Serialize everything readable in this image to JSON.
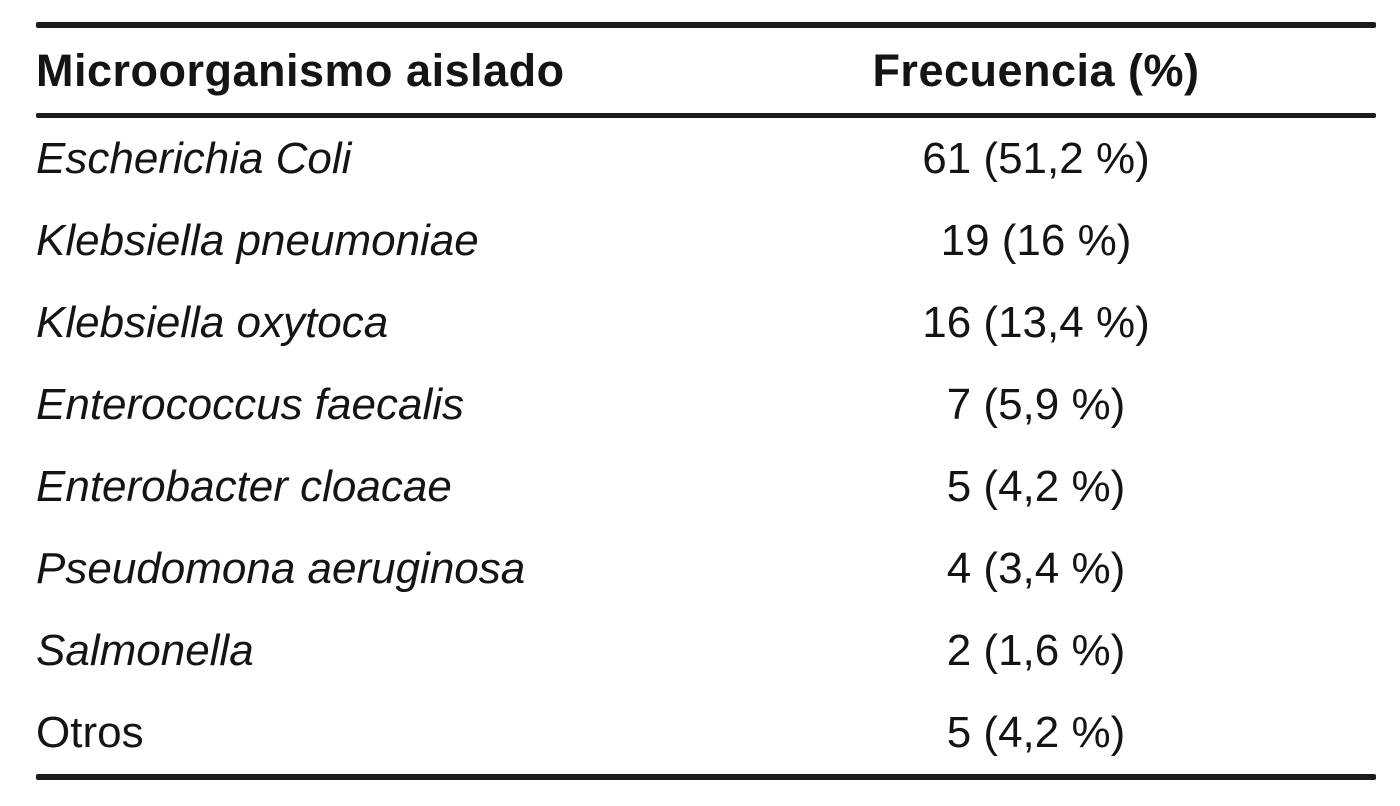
{
  "table": {
    "headers": {
      "organism": "Microorganismo aislado",
      "frequency": "Frecuencia (%)"
    },
    "rows": [
      {
        "organism": "Escherichia Coli",
        "frequency": "61 (51,2 %)"
      },
      {
        "organism": "Klebsiella pneumoniae",
        "frequency": "19 (16 %)"
      },
      {
        "organism": "Klebsiella oxytoca",
        "frequency": "16 (13,4 %)"
      },
      {
        "organism": "Enterococcus faecalis",
        "frequency": "7 (5,9 %)"
      },
      {
        "organism": "Enterobacter cloacae",
        "frequency": "5 (4,2 %)"
      },
      {
        "organism": "Pseudomona aeruginosa",
        "frequency": "4 (3,4 %)"
      },
      {
        "organism": "Salmonella",
        "frequency": "2 (1,6 %)"
      },
      {
        "organism": "Otros",
        "frequency": "5 (4,2 %)"
      }
    ],
    "colors": {
      "text": "#141414",
      "rule": "#1c1c1c",
      "background": "#ffffff"
    }
  }
}
